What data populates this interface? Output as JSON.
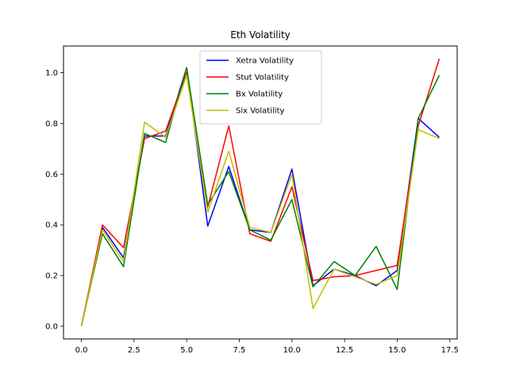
{
  "chart_data": {
    "type": "line",
    "title": "Eth Volatility",
    "xlabel": "",
    "ylabel": "",
    "xlim": [
      -0.85,
      17.85
    ],
    "ylim": [
      -0.05,
      1.105
    ],
    "x_ticks": [
      0.0,
      2.5,
      5.0,
      7.5,
      10.0,
      12.5,
      15.0,
      17.5
    ],
    "x_tick_labels": [
      "0.0",
      "2.5",
      "5.0",
      "7.5",
      "10.0",
      "12.5",
      "15.0",
      "17.5"
    ],
    "y_ticks": [
      0.0,
      0.2,
      0.4,
      0.6,
      0.8,
      1.0
    ],
    "y_tick_labels": [
      "0.0",
      "0.2",
      "0.4",
      "0.6",
      "0.8",
      "1.0"
    ],
    "grid": false,
    "legend_position": "top-center",
    "x": [
      0,
      1,
      2,
      3,
      4,
      5,
      6,
      7,
      8,
      9,
      10,
      11,
      12,
      13,
      14,
      15,
      16,
      17
    ],
    "series": [
      {
        "name": "Xetra Volatility",
        "color": "#0000ff",
        "values": [
          0.0,
          0.39,
          0.27,
          0.75,
          0.75,
          1.02,
          0.395,
          0.63,
          0.38,
          0.37,
          0.62,
          0.16,
          0.225,
          0.2,
          0.16,
          0.22,
          0.82,
          0.745
        ]
      },
      {
        "name": "Stut Volatility",
        "color": "#ff0000",
        "values": [
          0.0,
          0.4,
          0.31,
          0.74,
          0.77,
          1.0,
          0.47,
          0.79,
          0.365,
          0.335,
          0.55,
          0.18,
          0.195,
          0.2,
          0.22,
          0.24,
          0.79,
          1.055
        ]
      },
      {
        "name": "Bx Volatility",
        "color": "#008000",
        "values": [
          0.0,
          0.365,
          0.235,
          0.76,
          0.725,
          1.02,
          0.48,
          0.61,
          0.38,
          0.34,
          0.5,
          0.155,
          0.255,
          0.2,
          0.315,
          0.145,
          0.82,
          0.99
        ]
      },
      {
        "name": "Six Volatility",
        "color": "#bfbf00",
        "values": [
          0.0,
          0.38,
          0.255,
          0.805,
          0.745,
          0.99,
          0.45,
          0.69,
          0.39,
          0.37,
          0.6,
          0.07,
          0.225,
          0.195,
          0.165,
          0.2,
          0.775,
          0.74
        ]
      }
    ]
  }
}
